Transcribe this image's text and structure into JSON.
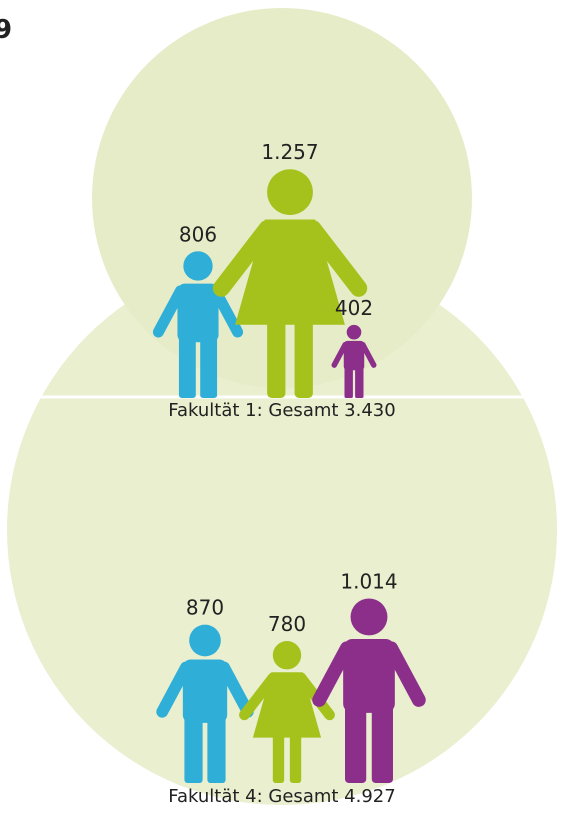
{
  "heading": "9",
  "chart_data": [
    {
      "type": "pictograph",
      "title": "Fakultät 1: Gesamt 3.430",
      "values": [
        806,
        1257,
        402
      ],
      "value_labels": [
        "806",
        "1.257",
        "402"
      ],
      "colors": [
        "#2fafd8",
        "#a5c21c",
        "#8c2f8b"
      ],
      "kinds": [
        "man",
        "woman",
        "man"
      ]
    },
    {
      "type": "pictograph",
      "title": "Fakultät 4: Gesamt 4.927",
      "values": [
        870,
        780,
        1014
      ],
      "value_labels": [
        "870",
        "780",
        "1.014"
      ],
      "colors": [
        "#2fafd8",
        "#a5c21c",
        "#8c2f8b"
      ],
      "kinds": [
        "man",
        "woman",
        "man"
      ]
    }
  ]
}
